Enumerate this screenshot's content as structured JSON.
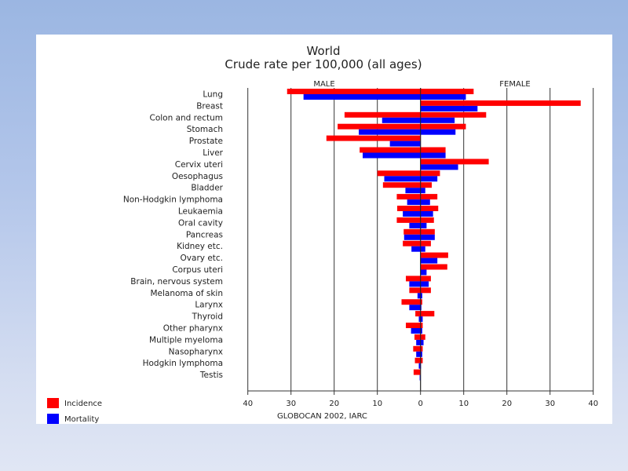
{
  "chart_data": {
    "type": "bar",
    "orientation": "horizontal-population-pyramid",
    "title": "World",
    "subtitle": "Crude rate per 100,000 (all ages)",
    "left_header": "MALE",
    "right_header": "FEMALE",
    "source": "GLOBOCAN 2002, IARC",
    "xlim": [
      -40,
      40
    ],
    "xticks": [
      40,
      30,
      20,
      10,
      0,
      10,
      20,
      30,
      40
    ],
    "grid": true,
    "legend_position": "bottom-left",
    "legend": [
      {
        "name": "Incidence",
        "color": "#ff0000"
      },
      {
        "name": "Mortality",
        "color": "#0000ff"
      }
    ],
    "categories": [
      "Lung",
      "Breast",
      "Colon and rectum",
      "Stomach",
      "Prostate",
      "Liver",
      "Cervix uteri",
      "Oesophagus",
      "Bladder",
      "Non-Hodgkin lymphoma",
      "Leukaemia",
      "Oral cavity",
      "Pancreas",
      "Kidney etc.",
      "Ovary etc.",
      "Corpus uteri",
      "Brain, nervous system",
      "Melanoma of skin",
      "Larynx",
      "Thyroid",
      "Other pharynx",
      "Multiple myeloma",
      "Nasopharynx",
      "Hodgkin lymphoma",
      "Testis"
    ],
    "series": [
      {
        "name": "Male Incidence",
        "sex": "male",
        "measure": "Incidence",
        "values": [
          30.9,
          0,
          17.6,
          19.2,
          21.8,
          14.1,
          0,
          10.0,
          8.7,
          5.5,
          5.4,
          5.5,
          3.9,
          4.1,
          0,
          0,
          3.4,
          2.6,
          4.4,
          1.2,
          3.4,
          1.4,
          1.7,
          1.3,
          1.6
        ]
      },
      {
        "name": "Male Mortality",
        "sex": "male",
        "measure": "Mortality",
        "values": [
          27.1,
          0,
          8.9,
          14.3,
          7.1,
          13.4,
          0,
          8.4,
          3.5,
          3.1,
          4.1,
          2.6,
          3.8,
          2.1,
          0,
          0,
          2.6,
          0.7,
          2.6,
          0.4,
          2.2,
          1.0,
          1.0,
          0.4,
          0.2
        ]
      },
      {
        "name": "Female Incidence",
        "sex": "female",
        "measure": "Incidence",
        "values": [
          12.3,
          37.1,
          15.2,
          10.5,
          0,
          5.8,
          15.8,
          4.5,
          2.6,
          3.9,
          4.1,
          3.1,
          3.3,
          2.4,
          6.4,
          6.2,
          2.4,
          2.4,
          0.4,
          3.2,
          0.5,
          1.1,
          0.5,
          0.5,
          0
        ]
      },
      {
        "name": "Female Mortality",
        "sex": "female",
        "measure": "Mortality",
        "values": [
          10.5,
          13.2,
          7.9,
          8.1,
          0,
          5.8,
          8.7,
          3.9,
          1.1,
          2.2,
          2.9,
          1.4,
          3.3,
          1.1,
          3.9,
          1.4,
          1.9,
          0.4,
          0.2,
          0.5,
          0.4,
          0.7,
          0.4,
          0.1,
          0
        ]
      }
    ]
  }
}
